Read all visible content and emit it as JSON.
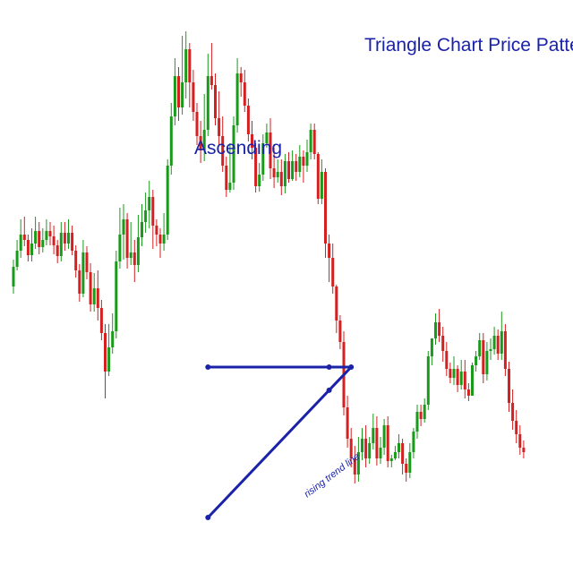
{
  "chart_data": {
    "type": "candlestick",
    "title": "Triangle Chart Price Patterns",
    "pattern_label": "Ascending",
    "trendline_label": "rising trend line",
    "ylim": [
      0,
      640
    ],
    "colors": {
      "up": "#1a9a1a",
      "down": "#d42020",
      "annotation": "#1a22a8",
      "background": "#ffffff"
    },
    "candles": [
      [
        320,
        342,
        312,
        350
      ],
      [
        342,
        360,
        338,
        372
      ],
      [
        360,
        378,
        352,
        395
      ],
      [
        378,
        372,
        365,
        398
      ],
      [
        372,
        355,
        348,
        378
      ],
      [
        355,
        368,
        348,
        385
      ],
      [
        368,
        382,
        362,
        398
      ],
      [
        382,
        364,
        356,
        392
      ],
      [
        364,
        372,
        358,
        385
      ],
      [
        372,
        382,
        366,
        395
      ],
      [
        382,
        376,
        366,
        392
      ],
      [
        376,
        366,
        356,
        388
      ],
      [
        366,
        354,
        346,
        372
      ],
      [
        354,
        380,
        348,
        392
      ],
      [
        380,
        368,
        360,
        392
      ],
      [
        368,
        380,
        362,
        395
      ],
      [
        380,
        360,
        355,
        388
      ],
      [
        360,
        338,
        330,
        366
      ],
      [
        338,
        312,
        303,
        345
      ],
      [
        312,
        358,
        308,
        372
      ],
      [
        358,
        336,
        328,
        365
      ],
      [
        336,
        300,
        292,
        346
      ],
      [
        300,
        318,
        292,
        335
      ],
      [
        318,
        296,
        282,
        338
      ],
      [
        296,
        268,
        260,
        305
      ],
      [
        268,
        225,
        195,
        278
      ],
      [
        225,
        252,
        220,
        278
      ],
      [
        252,
        270,
        245,
        290
      ],
      [
        270,
        348,
        262,
        360
      ],
      [
        348,
        378,
        340,
        408
      ],
      [
        378,
        395,
        350,
        412
      ],
      [
        395,
        352,
        340,
        402
      ],
      [
        352,
        358,
        344,
        392
      ],
      [
        358,
        344,
        325,
        372
      ],
      [
        344,
        375,
        336,
        400
      ],
      [
        375,
        392,
        365,
        412
      ],
      [
        392,
        405,
        380,
        425
      ],
      [
        405,
        420,
        385,
        438
      ],
      [
        420,
        388,
        362,
        428
      ],
      [
        388,
        378,
        365,
        395
      ],
      [
        378,
        368,
        352,
        385
      ],
      [
        368,
        378,
        360,
        402
      ],
      [
        378,
        455,
        372,
        462
      ],
      [
        455,
        510,
        445,
        525
      ],
      [
        510,
        555,
        500,
        575
      ],
      [
        555,
        520,
        505,
        565
      ],
      [
        520,
        548,
        512,
        600
      ],
      [
        548,
        585,
        530,
        605
      ],
      [
        585,
        548,
        520,
        592
      ],
      [
        548,
        515,
        505,
        562
      ],
      [
        515,
        488,
        478,
        525
      ],
      [
        488,
        472,
        458,
        505
      ],
      [
        472,
        495,
        460,
        535
      ],
      [
        495,
        555,
        488,
        580
      ],
      [
        555,
        545,
        540,
        592
      ],
      [
        545,
        508,
        500,
        558
      ],
      [
        508,
        488,
        478,
        538
      ],
      [
        488,
        455,
        448,
        510
      ],
      [
        455,
        428,
        420,
        465
      ],
      [
        428,
        436,
        425,
        480
      ],
      [
        436,
        500,
        428,
        510
      ],
      [
        500,
        558,
        492,
        575
      ],
      [
        558,
        548,
        532,
        565
      ],
      [
        548,
        522,
        515,
        562
      ],
      [
        522,
        490,
        482,
        530
      ],
      [
        490,
        475,
        462,
        505
      ],
      [
        475,
        432,
        425,
        480
      ],
      [
        432,
        445,
        426,
        458
      ],
      [
        445,
        480,
        438,
        490
      ],
      [
        480,
        492,
        475,
        502
      ],
      [
        492,
        452,
        440,
        508
      ],
      [
        452,
        442,
        430,
        475
      ],
      [
        442,
        448,
        436,
        462
      ],
      [
        448,
        432,
        422,
        462
      ],
      [
        432,
        460,
        424,
        468
      ],
      [
        460,
        440,
        436,
        470
      ],
      [
        440,
        460,
        438,
        472
      ],
      [
        460,
        448,
        438,
        468
      ],
      [
        448,
        465,
        442,
        478
      ],
      [
        465,
        455,
        436,
        472
      ],
      [
        455,
        470,
        448,
        484
      ],
      [
        470,
        495,
        462,
        502
      ],
      [
        495,
        468,
        462,
        502
      ],
      [
        468,
        418,
        412,
        470
      ],
      [
        418,
        448,
        412,
        462
      ],
      [
        448,
        368,
        352,
        452
      ],
      [
        368,
        352,
        325,
        378
      ],
      [
        352,
        320,
        312,
        368
      ],
      [
        320,
        282,
        268,
        322
      ],
      [
        282,
        258,
        250,
        288
      ],
      [
        258,
        185,
        176,
        270
      ],
      [
        185,
        150,
        140,
        198
      ],
      [
        150,
        128,
        118,
        162
      ],
      [
        128,
        110,
        100,
        142
      ],
      [
        110,
        135,
        102,
        152
      ],
      [
        135,
        150,
        126,
        162
      ],
      [
        150,
        128,
        118,
        165
      ],
      [
        128,
        145,
        122,
        152
      ],
      [
        145,
        162,
        138,
        178
      ],
      [
        162,
        128,
        120,
        175
      ],
      [
        128,
        140,
        122,
        152
      ],
      [
        140,
        165,
        132,
        172
      ],
      [
        165,
        125,
        118,
        175
      ],
      [
        125,
        128,
        118,
        132
      ],
      [
        128,
        135,
        126,
        142
      ],
      [
        135,
        145,
        128,
        155
      ],
      [
        145,
        122,
        110,
        150
      ],
      [
        122,
        112,
        102,
        128
      ],
      [
        112,
        135,
        106,
        145
      ],
      [
        135,
        158,
        128,
        162
      ],
      [
        158,
        180,
        150,
        188
      ],
      [
        180,
        172,
        164,
        188
      ],
      [
        172,
        188,
        168,
        195
      ],
      [
        188,
        242,
        182,
        248
      ],
      [
        242,
        262,
        232,
        262
      ],
      [
        262,
        280,
        255,
        290
      ],
      [
        280,
        265,
        258,
        295
      ],
      [
        265,
        248,
        236,
        275
      ],
      [
        248,
        228,
        220,
        258
      ],
      [
        228,
        218,
        212,
        235
      ],
      [
        218,
        228,
        210,
        242
      ],
      [
        228,
        210,
        202,
        232
      ],
      [
        210,
        225,
        205,
        238
      ],
      [
        225,
        205,
        195,
        238
      ],
      [
        205,
        198,
        192,
        212
      ],
      [
        198,
        232,
        198,
        235
      ],
      [
        232,
        242,
        225,
        248
      ],
      [
        242,
        260,
        238,
        268
      ],
      [
        260,
        222,
        212,
        268
      ],
      [
        222,
        248,
        215,
        258
      ],
      [
        248,
        250,
        238,
        262
      ],
      [
        250,
        265,
        244,
        275
      ],
      [
        265,
        245,
        238,
        272
      ],
      [
        245,
        270,
        238,
        292
      ],
      [
        270,
        228,
        220,
        278
      ],
      [
        228,
        190,
        180,
        236
      ],
      [
        190,
        170,
        160,
        205
      ],
      [
        170,
        155,
        145,
        182
      ],
      [
        155,
        140,
        132,
        165
      ],
      [
        140,
        135,
        128,
        148
      ]
    ],
    "annotations": [
      {
        "type": "horizontal_resistance",
        "y": 230,
        "from_candle": 53,
        "to_candle": 92
      },
      {
        "type": "rising_trend_line",
        "from": [
          53,
          62
        ],
        "to": [
          92,
          230
        ]
      }
    ]
  }
}
